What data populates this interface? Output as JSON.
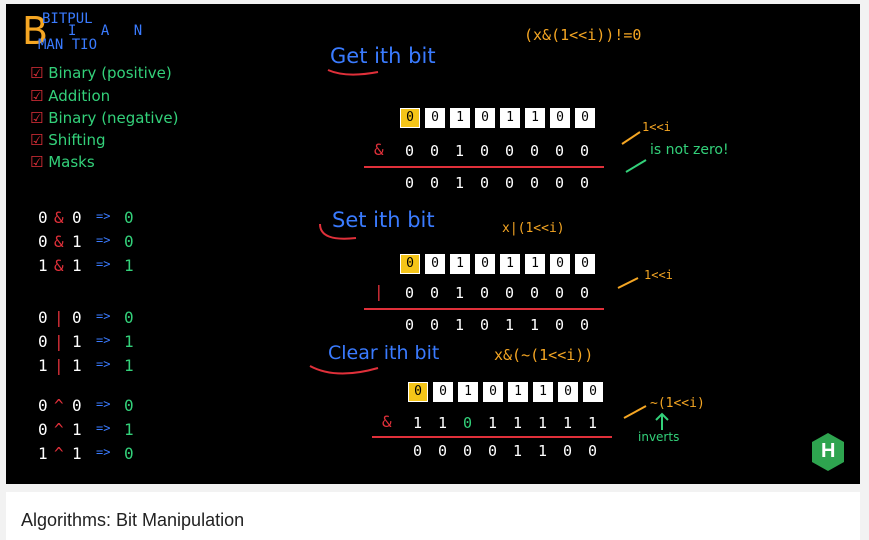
{
  "board": {
    "title": {
      "line1": "BITPUL",
      "line2": "I A N",
      "line3": "MAN TIO"
    },
    "checklist": [
      "Binary (positive)",
      "Addition",
      "Binary (negative)",
      "Shifting",
      "Masks"
    ],
    "truth_tables": {
      "and": [
        [
          "0",
          "&",
          "0",
          "=>",
          "0"
        ],
        [
          "0",
          "&",
          "1",
          "=>",
          "0"
        ],
        [
          "1",
          "&",
          "1",
          "=>",
          "1"
        ]
      ],
      "or": [
        [
          "0",
          "|",
          "0",
          "=>",
          "0"
        ],
        [
          "0",
          "|",
          "1",
          "=>",
          "1"
        ],
        [
          "1",
          "|",
          "1",
          "=>",
          "1"
        ]
      ],
      "xor": [
        [
          "0",
          "^",
          "0",
          "=>",
          "0"
        ],
        [
          "0",
          "^",
          "1",
          "=>",
          "1"
        ],
        [
          "1",
          "^",
          "1",
          "=>",
          "0"
        ]
      ]
    },
    "get": {
      "heading": "Get ith bit",
      "formula": "(x&(1<<i))!=0",
      "bits": [
        "0",
        "0",
        "1",
        "0",
        "1",
        "1",
        "0",
        "0"
      ],
      "operator": "&",
      "mask": [
        "0",
        "0",
        "1",
        "0",
        "0",
        "0",
        "0",
        "0"
      ],
      "result": [
        "0",
        "0",
        "1",
        "0",
        "0",
        "0",
        "0",
        "0"
      ],
      "mask_note": "1<<i",
      "result_note": "is not zero!"
    },
    "set": {
      "heading": "Set ith bit",
      "formula": "x|(1<<i)",
      "bits": [
        "0",
        "0",
        "1",
        "0",
        "1",
        "1",
        "0",
        "0"
      ],
      "operator": "|",
      "mask": [
        "0",
        "0",
        "1",
        "0",
        "0",
        "0",
        "0",
        "0"
      ],
      "result": [
        "0",
        "0",
        "1",
        "0",
        "1",
        "1",
        "0",
        "0"
      ],
      "mask_note": "1<<i"
    },
    "clear": {
      "heading": "Clear ith bit",
      "formula": "x&(~(1<<i))",
      "bits": [
        "0",
        "0",
        "1",
        "0",
        "1",
        "1",
        "0",
        "0"
      ],
      "operator": "&",
      "mask": [
        "1",
        "1",
        "0",
        "1",
        "1",
        "1",
        "1",
        "1"
      ],
      "result": [
        "0",
        "0",
        "0",
        "0",
        "1",
        "1",
        "0",
        "0"
      ],
      "mask_note": "~(1<<i)",
      "invert_note": "inverts"
    },
    "logo": "H",
    "colors": {
      "background": "#000000",
      "highlight": "#f5c518",
      "blue": "#3a7bff",
      "green": "#33d17a",
      "orange": "#f5a623",
      "red": "#e0303a"
    }
  },
  "caption": "Algorithms: Bit Manipulation"
}
